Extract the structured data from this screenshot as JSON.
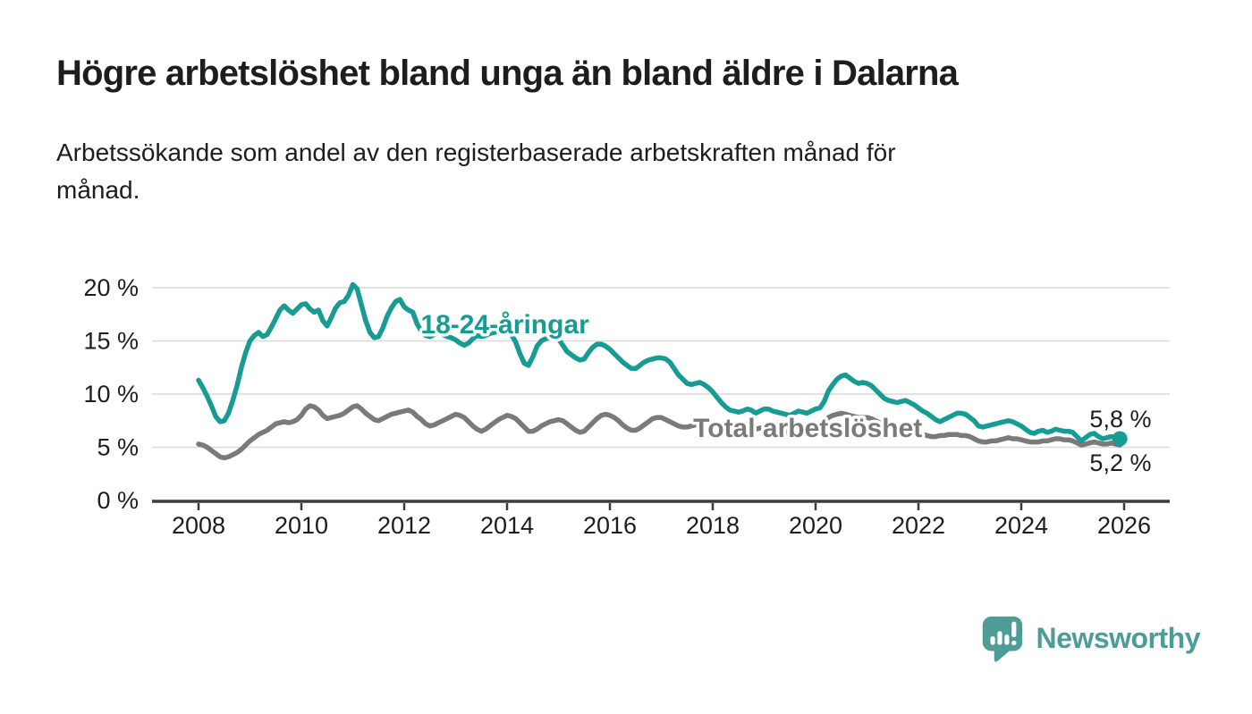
{
  "header": {
    "title": "Högre arbetslöshet bland unga än bland äldre i Dalarna",
    "subtitle_line1": "Arbetssökande som andel av den registerbaserade arbetskraften månad för",
    "subtitle_line2": "månad."
  },
  "chart_data": {
    "type": "line",
    "unit": "%",
    "grid": "horizontal",
    "legend_position": "inline-labels",
    "x_axis": {
      "tick_years": [
        2008,
        2010,
        2012,
        2014,
        2016,
        2018,
        2020,
        2022,
        2024,
        2026
      ],
      "points_per_year": 12,
      "start_year": 2008
    },
    "y_axis": {
      "range": [
        0,
        21
      ],
      "ticks": [
        {
          "value": 0,
          "label": "0 %"
        },
        {
          "value": 5,
          "label": "5 %"
        },
        {
          "value": 10,
          "label": "10 %"
        },
        {
          "value": 15,
          "label": "15 %"
        },
        {
          "value": 20,
          "label": "20 %"
        }
      ]
    },
    "colors": {
      "grid": "#d9d9d9",
      "axis": "#3b3b3a",
      "text": "#1d1d1b"
    },
    "series": [
      {
        "name": "Total arbetslöshet",
        "color": "#7a7a7a",
        "end_label": "5,2 %",
        "end_dot": false,
        "label_anchor": {
          "year": 2017.62,
          "value": 5.95
        },
        "end_label_anchor": {
          "year": 2026.53,
          "value": 2.78
        },
        "values": [
          5.3,
          5.2,
          5.0,
          4.7,
          4.4,
          4.1,
          4.0,
          4.1,
          4.3,
          4.5,
          4.8,
          5.2,
          5.6,
          5.9,
          6.2,
          6.4,
          6.6,
          6.9,
          7.2,
          7.3,
          7.4,
          7.3,
          7.4,
          7.6,
          8.0,
          8.6,
          8.9,
          8.8,
          8.5,
          8.0,
          7.7,
          7.8,
          7.9,
          8.0,
          8.2,
          8.5,
          8.8,
          8.9,
          8.6,
          8.2,
          7.9,
          7.6,
          7.5,
          7.7,
          7.9,
          8.1,
          8.2,
          8.3,
          8.4,
          8.5,
          8.3,
          7.9,
          7.6,
          7.2,
          7.0,
          7.1,
          7.3,
          7.5,
          7.7,
          7.9,
          8.1,
          8.0,
          7.8,
          7.4,
          7.0,
          6.7,
          6.5,
          6.7,
          7.0,
          7.3,
          7.6,
          7.8,
          8.0,
          7.9,
          7.7,
          7.3,
          6.9,
          6.5,
          6.5,
          6.7,
          7.0,
          7.2,
          7.4,
          7.5,
          7.6,
          7.5,
          7.2,
          6.9,
          6.6,
          6.4,
          6.5,
          6.9,
          7.3,
          7.7,
          8.0,
          8.1,
          8.0,
          7.8,
          7.5,
          7.1,
          6.8,
          6.6,
          6.6,
          6.8,
          7.1,
          7.4,
          7.7,
          7.8,
          7.8,
          7.6,
          7.4,
          7.2,
          7.0,
          6.9,
          6.9,
          7.0,
          7.1,
          7.2,
          7.2,
          7.2,
          7.2,
          7.1,
          6.9,
          6.6,
          6.4,
          6.3,
          6.3,
          6.4,
          6.5,
          6.6,
          6.7,
          6.8,
          6.9,
          6.9,
          6.8,
          6.6,
          6.4,
          6.4,
          6.5,
          6.5,
          6.5,
          6.6,
          6.6,
          6.7,
          6.9,
          7.0,
          7.3,
          7.8,
          8.0,
          8.1,
          8.2,
          8.1,
          8.0,
          7.9,
          7.8,
          7.8,
          7.8,
          7.7,
          7.5,
          7.3,
          7.1,
          6.9,
          6.8,
          6.7,
          6.6,
          6.5,
          6.4,
          6.4,
          6.3,
          6.2,
          6.1,
          6.0,
          6.0,
          6.1,
          6.1,
          6.2,
          6.2,
          6.2,
          6.1,
          6.1,
          6.0,
          5.8,
          5.6,
          5.5,
          5.5,
          5.6,
          5.6,
          5.7,
          5.8,
          5.9,
          5.8,
          5.8,
          5.7,
          5.6,
          5.5,
          5.5,
          5.5,
          5.6,
          5.6,
          5.7,
          5.8,
          5.8,
          5.7,
          5.7,
          5.6,
          5.4,
          5.2,
          5.3,
          5.4,
          5.5,
          5.4,
          5.3,
          5.3,
          5.4,
          5.3,
          5.2
        ]
      },
      {
        "name": "18-24-åringar",
        "color": "#169c93",
        "end_label": "5,8 %",
        "end_dot": true,
        "label_anchor": {
          "year": 2012.32,
          "value": 15.7
        },
        "end_label_anchor": {
          "year": 2026.53,
          "value": 6.88
        },
        "values": [
          11.3,
          10.6,
          9.8,
          8.9,
          7.9,
          7.4,
          7.5,
          8.2,
          9.4,
          10.8,
          12.5,
          13.9,
          15.0,
          15.5,
          15.8,
          15.4,
          15.6,
          16.3,
          17.1,
          17.9,
          18.3,
          17.9,
          17.6,
          18.0,
          18.4,
          18.5,
          18.0,
          17.7,
          17.9,
          16.9,
          16.4,
          17.2,
          18.1,
          18.6,
          18.7,
          19.3,
          20.3,
          19.9,
          18.4,
          16.9,
          15.8,
          15.3,
          15.4,
          16.2,
          17.3,
          18.1,
          18.7,
          18.9,
          18.2,
          17.9,
          17.7,
          16.6,
          15.9,
          15.5,
          15.4,
          15.6,
          15.8,
          15.6,
          15.4,
          15.3,
          15.1,
          14.8,
          14.6,
          14.8,
          15.2,
          15.5,
          15.4,
          15.5,
          15.7,
          15.8,
          15.9,
          16.0,
          15.9,
          15.6,
          14.9,
          13.8,
          12.9,
          12.7,
          13.5,
          14.5,
          15.0,
          15.2,
          15.3,
          15.3,
          15.2,
          14.6,
          14.0,
          13.7,
          13.4,
          13.2,
          13.3,
          13.9,
          14.4,
          14.7,
          14.7,
          14.5,
          14.2,
          13.8,
          13.4,
          13.0,
          12.7,
          12.4,
          12.4,
          12.7,
          13.0,
          13.2,
          13.3,
          13.4,
          13.4,
          13.3,
          13.0,
          12.4,
          11.8,
          11.4,
          11.0,
          10.9,
          11.0,
          11.1,
          10.9,
          10.6,
          10.2,
          9.7,
          9.2,
          8.8,
          8.5,
          8.4,
          8.3,
          8.4,
          8.6,
          8.5,
          8.2,
          8.4,
          8.6,
          8.6,
          8.4,
          8.3,
          8.2,
          8.1,
          8.0,
          8.2,
          8.4,
          8.3,
          8.2,
          8.4,
          8.6,
          8.7,
          9.3,
          10.3,
          10.9,
          11.4,
          11.7,
          11.8,
          11.5,
          11.2,
          11.0,
          11.1,
          11.0,
          10.8,
          10.4,
          10.0,
          9.6,
          9.4,
          9.3,
          9.2,
          9.3,
          9.4,
          9.2,
          9.0,
          8.7,
          8.4,
          8.2,
          7.9,
          7.6,
          7.4,
          7.6,
          7.8,
          8.0,
          8.2,
          8.2,
          8.1,
          7.8,
          7.5,
          7.0,
          6.9,
          7.0,
          7.1,
          7.2,
          7.3,
          7.4,
          7.5,
          7.4,
          7.2,
          7.0,
          6.7,
          6.4,
          6.3,
          6.5,
          6.6,
          6.4,
          6.5,
          6.7,
          6.6,
          6.5,
          6.5,
          6.4,
          6.0,
          5.6,
          5.9,
          6.2,
          6.3,
          6.0,
          5.8,
          5.9,
          6.0,
          5.9,
          5.8
        ]
      }
    ]
  },
  "branding": {
    "name": "Newsworthy",
    "icon": "newsworthy-speech-bubble-chart-icon",
    "color": "#4e9c96"
  }
}
